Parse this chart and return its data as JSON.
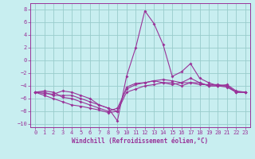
{
  "xlabel": "Windchill (Refroidissement éolien,°C)",
  "bg_color": "#c8eef0",
  "grid_color": "#99cccc",
  "line_color": "#993399",
  "xlim": [
    -0.5,
    23.5
  ],
  "ylim": [
    -10.5,
    9
  ],
  "xticks": [
    0,
    1,
    2,
    3,
    4,
    5,
    6,
    7,
    8,
    9,
    10,
    11,
    12,
    13,
    14,
    15,
    16,
    17,
    18,
    19,
    20,
    21,
    22,
    23
  ],
  "yticks": [
    -10,
    -8,
    -6,
    -4,
    -2,
    0,
    2,
    4,
    6,
    8
  ],
  "series": [
    {
      "x": [
        0,
        1,
        2,
        3,
        4,
        5,
        6,
        7,
        8,
        9,
        10,
        11,
        12,
        13,
        14,
        15,
        16,
        17,
        18,
        19,
        20,
        21,
        22,
        23
      ],
      "y": [
        -5.0,
        -5.2,
        -5.3,
        -4.8,
        -5.0,
        -5.5,
        -6.0,
        -7.0,
        -7.5,
        -9.5,
        -2.5,
        2.0,
        7.8,
        5.8,
        2.5,
        -2.5,
        -1.8,
        -0.5,
        -2.8,
        -3.5,
        -4.0,
        -3.8,
        -4.8,
        -5.0
      ]
    },
    {
      "x": [
        0,
        1,
        2,
        3,
        4,
        5,
        6,
        7,
        8,
        9,
        10,
        11,
        12,
        13,
        14,
        15,
        16,
        17,
        18,
        19,
        20,
        21,
        22,
        23
      ],
      "y": [
        -5.0,
        -4.8,
        -5.0,
        -5.8,
        -6.0,
        -6.5,
        -7.0,
        -7.5,
        -8.0,
        -7.5,
        -4.5,
        -3.8,
        -3.5,
        -3.2,
        -3.0,
        -3.2,
        -3.5,
        -3.5,
        -3.8,
        -3.8,
        -3.8,
        -4.0,
        -5.0,
        -5.0
      ]
    },
    {
      "x": [
        0,
        1,
        2,
        3,
        4,
        5,
        6,
        7,
        8,
        9,
        10,
        11,
        12,
        13,
        14,
        15,
        16,
        17,
        18,
        19,
        20,
        21,
        22,
        23
      ],
      "y": [
        -5.0,
        -5.0,
        -5.5,
        -5.5,
        -5.5,
        -6.0,
        -6.5,
        -7.0,
        -7.5,
        -8.0,
        -4.2,
        -3.6,
        -3.5,
        -3.2,
        -3.5,
        -3.8,
        -3.5,
        -2.8,
        -3.5,
        -4.0,
        -4.0,
        -4.2,
        -5.0,
        -5.0
      ]
    },
    {
      "x": [
        0,
        1,
        2,
        3,
        4,
        5,
        6,
        7,
        8,
        9,
        10,
        11,
        12,
        13,
        14,
        15,
        16,
        17,
        18,
        19,
        20,
        21,
        22,
        23
      ],
      "y": [
        -5.0,
        -5.5,
        -6.0,
        -6.5,
        -7.0,
        -7.2,
        -7.5,
        -7.8,
        -8.2,
        -8.0,
        -5.0,
        -4.5,
        -4.0,
        -3.8,
        -3.5,
        -3.5,
        -4.0,
        -3.5,
        -3.5,
        -4.0,
        -4.0,
        -4.0,
        -5.0,
        -5.0
      ]
    }
  ]
}
